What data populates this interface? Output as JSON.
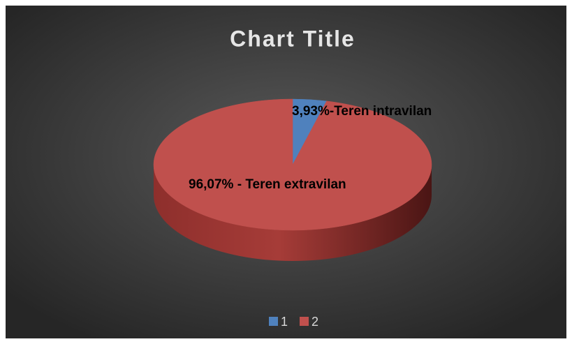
{
  "chart_data": {
    "type": "pie3d",
    "title": "Chart Title",
    "categories": [
      "1",
      "2"
    ],
    "values": [
      3.93,
      96.07
    ],
    "value_labels": [
      "3,93%-Teren intravilan",
      "96,07% - Teren extravilan"
    ],
    "colors": [
      "#4f81bd",
      "#c0504d"
    ],
    "legend": "bottom"
  }
}
